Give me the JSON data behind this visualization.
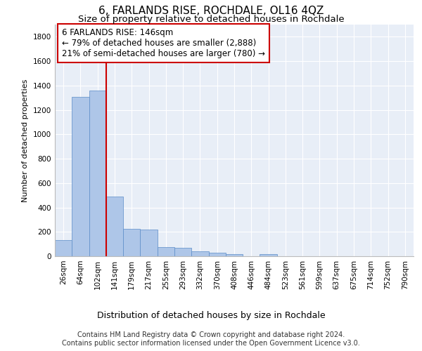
{
  "title": "6, FARLANDS RISE, ROCHDALE, OL16 4QZ",
  "subtitle": "Size of property relative to detached houses in Rochdale",
  "xlabel": "Distribution of detached houses by size in Rochdale",
  "ylabel": "Number of detached properties",
  "categories": [
    "26sqm",
    "64sqm",
    "102sqm",
    "141sqm",
    "179sqm",
    "217sqm",
    "255sqm",
    "293sqm",
    "332sqm",
    "370sqm",
    "408sqm",
    "446sqm",
    "484sqm",
    "523sqm",
    "561sqm",
    "599sqm",
    "637sqm",
    "675sqm",
    "714sqm",
    "752sqm",
    "790sqm"
  ],
  "values": [
    130,
    1305,
    1360,
    490,
    225,
    220,
    75,
    70,
    40,
    28,
    20,
    0,
    20,
    0,
    0,
    0,
    0,
    0,
    0,
    0,
    0
  ],
  "bar_color": "#aec6e8",
  "bar_edge_color": "#5b8cc8",
  "vline_index": 3,
  "vline_color": "#cc0000",
  "annotation_line1": "6 FARLANDS RISE: 146sqm",
  "annotation_line2": "← 79% of detached houses are smaller (2,888)",
  "annotation_line3": "21% of semi-detached houses are larger (780) →",
  "annotation_box_facecolor": "#ffffff",
  "annotation_box_edgecolor": "#cc0000",
  "ylim": [
    0,
    1900
  ],
  "yticks": [
    0,
    200,
    400,
    600,
    800,
    1000,
    1200,
    1400,
    1600,
    1800
  ],
  "background_color": "#e8eef7",
  "footer_line1": "Contains HM Land Registry data © Crown copyright and database right 2024.",
  "footer_line2": "Contains public sector information licensed under the Open Government Licence v3.0.",
  "title_fontsize": 11,
  "subtitle_fontsize": 9.5,
  "ylabel_fontsize": 8,
  "xlabel_fontsize": 9,
  "tick_fontsize": 7.5,
  "annotation_fontsize": 8.5,
  "footer_fontsize": 7
}
